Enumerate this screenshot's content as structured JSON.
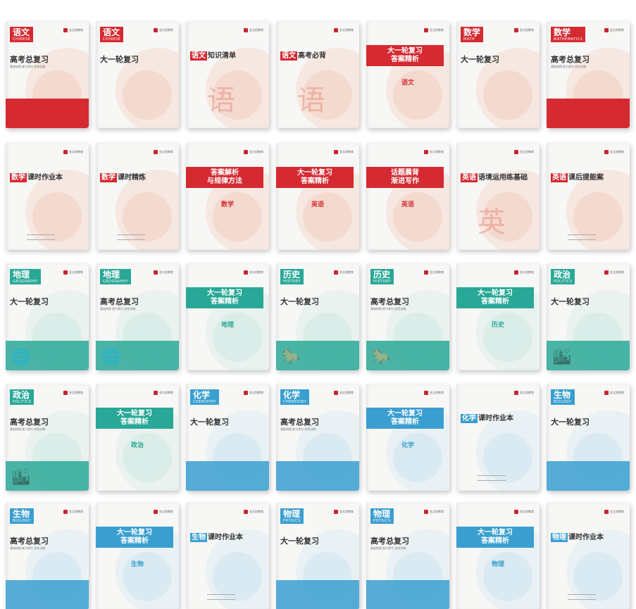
{
  "colors": {
    "red": "#d52a32",
    "green": "#2aa897",
    "blue": "#3a9fd0",
    "blue_light": "#4fb6e3"
  },
  "logo_text": "金太阳教育",
  "books": [
    {
      "style": "tag-band",
      "color": "red",
      "tag": "语文",
      "tag_en": "CHINESE",
      "title": "高考总复习",
      "sub": "基础梳理  能力提升  综合训练",
      "glyph": ""
    },
    {
      "style": "tag",
      "color": "red",
      "tag": "语文",
      "tag_en": "CHINESE",
      "title": "大一轮复习",
      "sub": "",
      "glyph": ""
    },
    {
      "style": "inline",
      "color": "red",
      "hl": "语文",
      "title_rest": "知识清单",
      "glyph": "语"
    },
    {
      "style": "inline",
      "color": "red",
      "hl": "语文",
      "title_rest": "高考必背",
      "glyph": "语"
    },
    {
      "style": "ribbon",
      "color": "red",
      "ribbon": "大一轮复习\n答案精析",
      "ribbon_sub": "语文"
    },
    {
      "style": "tag",
      "color": "red",
      "tag": "数学",
      "tag_en": "MATH",
      "title": "大一轮复习",
      "sub": "",
      "glyph": ""
    },
    {
      "style": "tag-band",
      "color": "red",
      "tag": "数学",
      "tag_en": "MATHEMATICS",
      "title": "高考总复习",
      "sub": "基础梳理  能力提升  综合训练",
      "glyph": ""
    },
    {
      "style": "inline",
      "color": "red",
      "hl": "数学",
      "title_rest": "课时作业本",
      "glyph": ""
    },
    {
      "style": "inline",
      "color": "red",
      "hl": "数学",
      "title_rest": "课时精炼",
      "glyph": ""
    },
    {
      "style": "ribbon",
      "color": "red",
      "ribbon": "答案解析\n与规律方法",
      "ribbon_sub": "数学"
    },
    {
      "style": "ribbon",
      "color": "red",
      "ribbon": "大一轮复习\n答案精析",
      "ribbon_sub": "英语"
    },
    {
      "style": "ribbon",
      "color": "red",
      "ribbon": "话题晨背\n渐进写作",
      "ribbon_sub": "英语"
    },
    {
      "style": "inline",
      "color": "red",
      "hl": "英语",
      "title_rest": "语境运用练基础",
      "glyph": "英"
    },
    {
      "style": "inline",
      "color": "red",
      "hl": "英语",
      "title_rest": "课后提能案",
      "glyph": ""
    },
    {
      "style": "tag-band",
      "color": "green",
      "tag": "地理",
      "tag_en": "GEOGRAPHY",
      "title": "大一轮复习",
      "sub": "",
      "glyph": "🌐"
    },
    {
      "style": "tag-band",
      "color": "green",
      "tag": "地理",
      "tag_en": "GEOGRAPHY",
      "title": "高考总复习",
      "sub": "基础梳理  能力提升  综合训练",
      "glyph": "🌐"
    },
    {
      "style": "ribbon",
      "color": "green",
      "ribbon": "大一轮复习\n答案精析",
      "ribbon_sub": "地理"
    },
    {
      "style": "tag-band",
      "color": "green",
      "tag": "历史",
      "tag_en": "HISTORY",
      "title": "大一轮复习",
      "sub": "",
      "glyph": "🐎"
    },
    {
      "style": "tag-band",
      "color": "green",
      "tag": "历史",
      "tag_en": "HISTORY",
      "title": "高考总复习",
      "sub": "基础梳理  能力提升  综合训练",
      "glyph": "🐎"
    },
    {
      "style": "ribbon",
      "color": "green",
      "ribbon": "大一轮复习\n答案精析",
      "ribbon_sub": "历史"
    },
    {
      "style": "tag-band",
      "color": "green",
      "tag": "政治",
      "tag_en": "POLITICS",
      "title": "大一轮复习",
      "sub": "",
      "glyph": "🏙"
    },
    {
      "style": "tag-band",
      "color": "green",
      "tag": "政治",
      "tag_en": "POLITICS",
      "title": "高考总复习",
      "sub": "基础梳理  能力提升  综合训练",
      "glyph": "🏙"
    },
    {
      "style": "ribbon",
      "color": "green",
      "ribbon": "大一轮复习\n答案精析",
      "ribbon_sub": "政治"
    },
    {
      "style": "tag-band",
      "color": "blue",
      "tag": "化学",
      "tag_en": "CHEMISTRY",
      "title": "大一轮复习",
      "sub": "",
      "glyph": ""
    },
    {
      "style": "tag-band",
      "color": "blue",
      "tag": "化学",
      "tag_en": "CHEMISTRY",
      "title": "高考总复习",
      "sub": "基础梳理  能力提升  综合训练",
      "glyph": ""
    },
    {
      "style": "ribbon",
      "color": "blue",
      "ribbon": "大一轮复习\n答案精析",
      "ribbon_sub": "化学"
    },
    {
      "style": "inline",
      "color": "blue",
      "hl": "化学",
      "title_rest": "课时作业本",
      "glyph": ""
    },
    {
      "style": "tag-band",
      "color": "blue",
      "tag": "生物",
      "tag_en": "BIOLOGY",
      "title": "大一轮复习",
      "sub": "",
      "glyph": ""
    },
    {
      "style": "tag-band",
      "color": "blue",
      "tag": "生物",
      "tag_en": "BIOLOGY",
      "title": "高考总复习",
      "sub": "基础梳理  能力提升  综合训练",
      "glyph": ""
    },
    {
      "style": "ribbon",
      "color": "blue",
      "ribbon": "大一轮复习\n答案精析",
      "ribbon_sub": "生物"
    },
    {
      "style": "inline",
      "color": "blue",
      "hl": "生物",
      "title_rest": "课时作业本",
      "glyph": ""
    },
    {
      "style": "tag-band",
      "color": "blue",
      "tag": "物理",
      "tag_en": "PHYSICS",
      "title": "大一轮复习",
      "sub": "",
      "glyph": ""
    },
    {
      "style": "tag-band",
      "color": "blue",
      "tag": "物理",
      "tag_en": "PHYSICS",
      "title": "高考总复习",
      "sub": "基础梳理  能力提升  综合训练",
      "glyph": ""
    },
    {
      "style": "ribbon",
      "color": "blue",
      "ribbon": "大一轮复习\n答案精析",
      "ribbon_sub": "物理"
    },
    {
      "style": "inline",
      "color": "blue",
      "hl": "物理",
      "title_rest": "课时作业本",
      "glyph": ""
    }
  ]
}
